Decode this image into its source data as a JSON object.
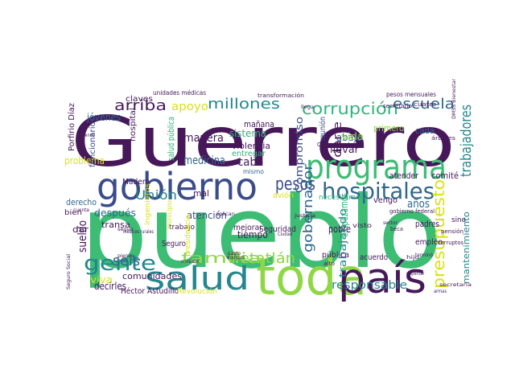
{
  "palette": {
    "dark_purple": "#46185a",
    "indigo": "#3a4c8a",
    "blue": "#30678d",
    "teal": "#24868e",
    "green": "#2fb47c",
    "lime": "#8fd744",
    "yellow": "#d8e219",
    "mint": "#5ec962"
  },
  "words": [
    {
      "text": "Guerrero",
      "color": "#46185a"
    },
    {
      "text": "pueblo",
      "color": "#3dbc74"
    },
    {
      "text": "toda",
      "color": "#8fd744"
    },
    {
      "text": "país",
      "color": "#46185a"
    },
    {
      "text": "gobierno",
      "color": "#3a4c8a"
    },
    {
      "text": "programa",
      "color": "#3dbc74"
    },
    {
      "text": "salud",
      "color": "#24868e"
    },
    {
      "text": "hospitales",
      "color": "#30678d"
    },
    {
      "text": "corrupción",
      "color": "#2fb47c"
    },
    {
      "text": "millones",
      "color": "#24868e"
    },
    {
      "text": "escuela",
      "color": "#30678d"
    },
    {
      "text": "arriba",
      "color": "#46185a"
    },
    {
      "text": "apoyo",
      "color": "#d8e219"
    },
    {
      "text": "pesos",
      "color": "#3a4c8a"
    },
    {
      "text": "gente",
      "color": "#24868e"
    },
    {
      "text": "familia",
      "color": "#8fd744"
    },
    {
      "text": "Petatlán",
      "color": "#8fd744"
    },
    {
      "text": "seis",
      "color": "#30678d"
    },
    {
      "text": "Unión",
      "color": "#24868e"
    },
    {
      "text": "gobernador",
      "color": "#30678d"
    },
    {
      "text": "presupuesto",
      "color": "#d8e219"
    },
    {
      "text": "trabajadores",
      "color": "#24868e"
    },
    {
      "text": "Compromiso",
      "color": "#3a4c8a"
    },
    {
      "text": "responsable",
      "color": "#24868e"
    },
    {
      "text": "tiempo",
      "color": "#46185a"
    },
    {
      "text": "medicina",
      "color": "#30678d"
    },
    {
      "text": "manera",
      "color": "#46185a"
    },
    {
      "text": "sistema",
      "color": "#2fb47c"
    },
    {
      "text": "cabo",
      "color": "#46185a"
    },
    {
      "text": "problema",
      "color": "#d8e219"
    },
    {
      "text": "después",
      "color": "#30678d"
    },
    {
      "text": "atención",
      "color": "#3a4c8a"
    },
    {
      "text": "mañana",
      "color": "#46185a"
    },
    {
      "text": "violencia",
      "color": "#46185a"
    },
    {
      "text": "entregar",
      "color": "#2fb47c"
    },
    {
      "text": "llevar",
      "color": "#46185a"
    },
    {
      "text": "abajo",
      "color": "#30678d"
    },
    {
      "text": "vida",
      "color": "#8fd744"
    },
    {
      "text": "darle",
      "color": "#46185a"
    },
    {
      "text": "reunión",
      "color": "#3a4c8a"
    },
    {
      "text": "trabajando",
      "color": "#24868e"
    },
    {
      "text": "empezamos",
      "color": "#2fb47c"
    },
    {
      "text": "pobre",
      "color": "#46185a"
    },
    {
      "text": "años",
      "color": "#30678d"
    },
    {
      "text": "mantenimiento",
      "color": "#24868e"
    },
    {
      "text": "atender",
      "color": "#46185a"
    },
    {
      "text": "comité",
      "color": "#46185a"
    },
    {
      "text": "primero",
      "color": "#8fd744"
    },
    {
      "text": "cada",
      "color": "#30678d"
    },
    {
      "text": "jóvenes",
      "color": "#30678d"
    },
    {
      "text": "claves",
      "color": "#46185a"
    },
    {
      "text": "Porfirio Díaz",
      "color": "#46185a"
    },
    {
      "text": "funcionarios",
      "color": "#3a4c8a"
    },
    {
      "text": "hospital",
      "color": "#46185a"
    },
    {
      "text": "salud pública",
      "color": "#2fb47c"
    },
    {
      "text": "sueldo",
      "color": "#46185a"
    },
    {
      "text": "derecho",
      "color": "#30678d"
    },
    {
      "text": "bien",
      "color": "#46185a"
    },
    {
      "text": "dar",
      "color": "#46185a"
    },
    {
      "text": "transa",
      "color": "#46185a"
    },
    {
      "text": "viva",
      "color": "#d8e219"
    },
    {
      "text": "decirles",
      "color": "#46185a"
    },
    {
      "text": "comunidades",
      "color": "#46185a"
    },
    {
      "text": "Héctor Astudillo",
      "color": "#46185a"
    },
    {
      "text": "Revolución",
      "color": "#d8e219"
    },
    {
      "text": "Madero",
      "color": "#46185a"
    },
    {
      "text": "trabajo",
      "color": "#46185a"
    },
    {
      "text": "mejorar",
      "color": "#46185a"
    },
    {
      "text": "avión",
      "color": "#d8e219"
    },
    {
      "text": "Seguridad",
      "color": "#46185a"
    },
    {
      "text": "necesitamos",
      "color": "#2fb47c"
    },
    {
      "text": "vengo",
      "color": "#46185a"
    },
    {
      "text": "pública",
      "color": "#46185a"
    },
    {
      "text": "padres",
      "color": "#46185a"
    },
    {
      "text": "empleo",
      "color": "#46185a"
    },
    {
      "text": "sino",
      "color": "#46185a"
    },
    {
      "text": "visto",
      "color": "#46185a"
    },
    {
      "text": "acuerdo",
      "color": "#46185a"
    },
    {
      "text": "mismo",
      "color": "#30678d"
    },
    {
      "text": "mal",
      "color": "#46185a"
    },
    {
      "text": "Seguro",
      "color": "#46185a"
    },
    {
      "text": "unidades médicas",
      "color": "#46185a"
    },
    {
      "text": "transformación",
      "color": "#46185a"
    },
    {
      "text": "pesos mensuales",
      "color": "#46185a"
    },
    {
      "text": "DMSS Bienestar",
      "color": "#46185a"
    },
    {
      "text": "árboles",
      "color": "#46185a"
    },
    {
      "text": "cuatro",
      "color": "#46185a"
    },
    {
      "text": "secretario",
      "color": "#46185a"
    },
    {
      "text": "Costa Grande",
      "color": "#46185a"
    },
    {
      "text": "gobierno federal",
      "color": "#46185a"
    },
    {
      "text": "corruptos",
      "color": "#46185a"
    },
    {
      "text": "pensión",
      "color": "#46185a"
    },
    {
      "text": "secretaría",
      "color": "#46185a"
    },
    {
      "text": "Seguro Social",
      "color": "#46185a"
    },
    {
      "text": "médicos rurales",
      "color": "#46185a"
    },
    {
      "text": "cuenta",
      "color": "#46185a"
    },
    {
      "text": "justicia",
      "color": "#46185a"
    },
    {
      "text": "Ciudad",
      "color": "#46185a"
    },
    {
      "text": "aplican",
      "color": "#46185a"
    },
    {
      "text": "ingenieros",
      "color": "#d8e219"
    },
    {
      "text": "municipio",
      "color": "#d8e219"
    },
    {
      "text": "presidencia",
      "color": "#d8e219"
    },
    {
      "text": "gasto",
      "color": "#46185a"
    },
    {
      "text": "equipos",
      "color": "#46185a"
    },
    {
      "text": "consiste",
      "color": "#46185a"
    },
    {
      "text": "fallar",
      "color": "#46185a"
    },
    {
      "text": "llega",
      "color": "#46185a"
    },
    {
      "text": "alto",
      "color": "#46185a"
    },
    {
      "text": "sector",
      "color": "#46185a"
    },
    {
      "text": "terminó",
      "color": "#46185a"
    },
    {
      "text": "hijo",
      "color": "#46185a"
    },
    {
      "text": "depende",
      "color": "#46185a"
    },
    {
      "text": "armas",
      "color": "#46185a"
    },
    {
      "text": "beca",
      "color": "#46185a"
    },
    {
      "text": "menos",
      "color": "#46185a"
    },
    {
      "text": "pienso",
      "color": "#46185a"
    },
    {
      "text": "seguir",
      "color": "#46185a"
    }
  ]
}
